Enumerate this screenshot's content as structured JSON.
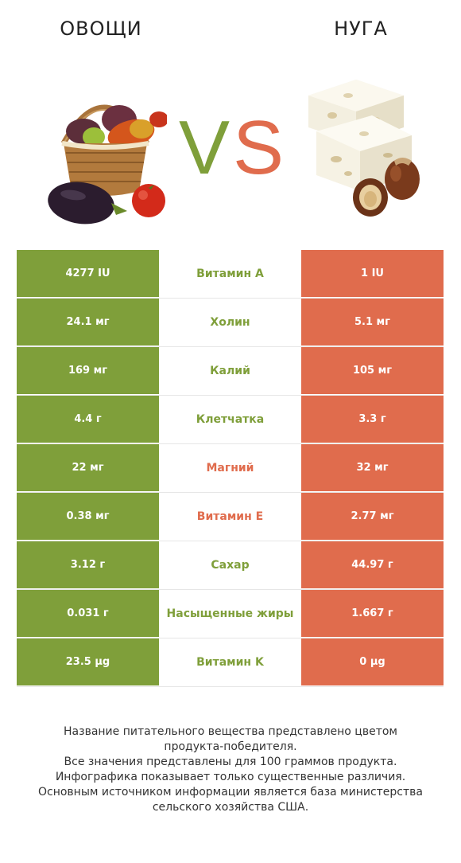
{
  "header": {
    "left_title": "ОВОЩИ",
    "right_title": "НУГА",
    "vs_left": "V",
    "vs_right": "S"
  },
  "colors": {
    "left_winner": "#7f9f3a",
    "right_winner": "#e06c4d"
  },
  "illustrations": {
    "left_icon": "vegetable-basket",
    "right_icon": "nougat-with-hazelnuts"
  },
  "rows": [
    {
      "left": "4277 IU",
      "label": "Витамин A",
      "right": "1 IU",
      "winner": "left"
    },
    {
      "left": "24.1 мг",
      "label": "Холин",
      "right": "5.1 мг",
      "winner": "left"
    },
    {
      "left": "169 мг",
      "label": "Калий",
      "right": "105 мг",
      "winner": "left"
    },
    {
      "left": "4.4 г",
      "label": "Клетчатка",
      "right": "3.3 г",
      "winner": "left"
    },
    {
      "left": "22 мг",
      "label": "Магний",
      "right": "32 мг",
      "winner": "right"
    },
    {
      "left": "0.38 мг",
      "label": "Витамин E",
      "right": "2.77 мг",
      "winner": "right"
    },
    {
      "left": "3.12 г",
      "label": "Сахар",
      "right": "44.97 г",
      "winner": "left"
    },
    {
      "left": "0.031 г",
      "label": "Насыщенные жиры",
      "right": "1.667 г",
      "winner": "left"
    },
    {
      "left": "23.5 µg",
      "label": "Витамин K",
      "right": "0 µg",
      "winner": "left"
    }
  ],
  "footer": {
    "line1": "Название питательного вещества представлено цветом",
    "line2": "продукта-победителя.",
    "line3": "Все значения представлены для 100 граммов продукта.",
    "line4": "Инфографика показывает только существенные различия.",
    "line5": "Основным источником информации является база министерства",
    "line6": "сельского хозяйства США."
  }
}
